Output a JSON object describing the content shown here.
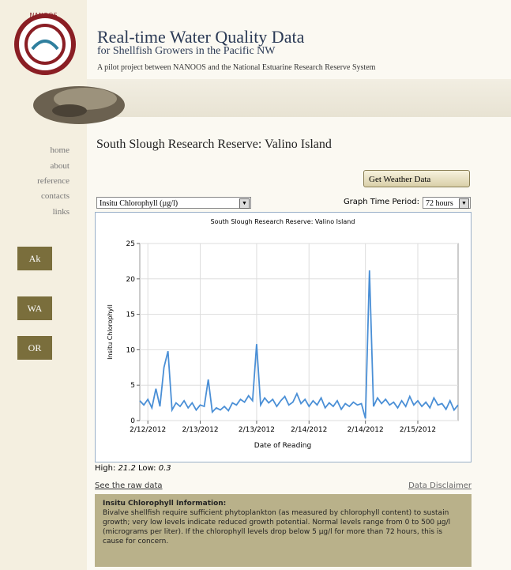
{
  "header": {
    "logo_text": "NANOOS",
    "title": "Real-time Water Quality Data",
    "subtitle": "for Shellfish Growers in the Pacific NW",
    "tagline": "A pilot project between NANOOS and the National Estuarine Research Reserve System"
  },
  "nav": [
    "home",
    "about",
    "reference",
    "contacts",
    "links"
  ],
  "states": [
    "Ak",
    "WA",
    "OR"
  ],
  "page_heading": "South Slough Research Reserve: Valino Island",
  "weather_button": "Get Weather Data",
  "parameter_select": "Insitu Chlorophyll (µg/l)",
  "time_period_label": "Graph Time Period:",
  "time_period_select": "72 hours",
  "chart_data": {
    "type": "line",
    "title": "South Slough Research Reserve: Valino Island",
    "x_label": "Date of Reading",
    "y_label": "Insitu Chlorophyll",
    "color": "#4a8fd6",
    "grid": true,
    "categories": [
      null,
      null,
      "2/12/2012",
      null,
      null,
      null,
      null,
      null,
      null,
      null,
      null,
      null,
      null,
      null,
      null,
      "2/13/2012",
      null,
      null,
      null,
      null,
      null,
      null,
      null,
      null,
      null,
      null,
      null,
      null,
      null,
      "2/13/2012",
      null,
      null,
      null,
      null,
      null,
      null,
      null,
      null,
      null,
      null,
      null,
      null,
      "2/14/2012",
      null,
      null,
      null,
      null,
      null,
      null,
      null,
      null,
      null,
      null,
      null,
      null,
      null,
      "2/14/2012",
      null,
      null,
      null,
      null,
      null,
      null,
      null,
      null,
      null,
      null,
      null,
      null,
      "2/15/2012",
      null,
      null,
      null,
      null,
      null,
      null,
      null,
      null,
      null,
      null
    ],
    "values": [
      2.8,
      2.2,
      3.0,
      1.8,
      4.5,
      2.0,
      7.5,
      9.8,
      1.5,
      2.5,
      2.0,
      2.8,
      1.8,
      2.5,
      1.5,
      2.2,
      2.0,
      5.8,
      1.2,
      1.8,
      1.5,
      2.0,
      1.4,
      2.5,
      2.2,
      3.0,
      2.6,
      3.5,
      2.8,
      10.8,
      2.2,
      3.2,
      2.5,
      3.0,
      2.0,
      2.8,
      3.4,
      2.2,
      2.6,
      3.8,
      2.4,
      3.0,
      2.0,
      2.8,
      2.2,
      3.2,
      1.8,
      2.5,
      2.0,
      2.8,
      1.6,
      2.4,
      2.0,
      2.6,
      2.2,
      2.4,
      0.3,
      21.2,
      2.0,
      3.2,
      2.4,
      3.0,
      2.2,
      2.6,
      1.8,
      2.8,
      2.0,
      3.4,
      2.2,
      2.8,
      2.0,
      2.6,
      1.8,
      3.2,
      2.2,
      2.4,
      1.6,
      2.8,
      1.5,
      2.2
    ],
    "ylim": [
      0,
      25
    ],
    "yticks": [
      0,
      5,
      10,
      15,
      20,
      25
    ]
  },
  "stats": {
    "high_label": "High:",
    "high": 21.2,
    "low_label": "Low:",
    "low": 0.3
  },
  "links": {
    "raw": "See the raw data",
    "disclaimer": "Data Disclaimer"
  },
  "info": {
    "title": "Insitu Chlorophyll Information:",
    "text": "Bivalve shellfish require sufficient phytoplankton (as measured by chlorophyll content) to sustain growth; very low levels indicate reduced growth potential. Normal levels range from 0 to 500 µg/l (micrograms per liter). If the chlorophyll levels drop below 5 µg/l for more than 72 hours, this is cause for concern."
  }
}
